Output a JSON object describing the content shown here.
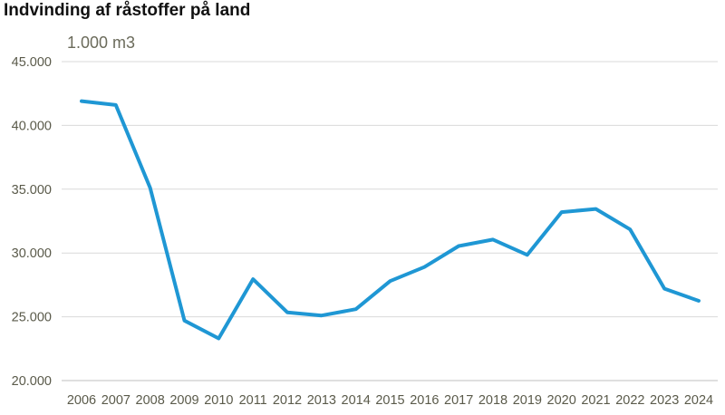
{
  "chart_data": {
    "type": "line",
    "title": "Indvinding af råstoffer på land",
    "unit_label": "1.000 m3",
    "ylim": [
      20000,
      45000
    ],
    "y_ticks": [
      20000,
      25000,
      30000,
      35000,
      40000,
      45000
    ],
    "y_tick_labels": [
      "20.000",
      "25.000",
      "30.000",
      "35.000",
      "40.000",
      "45.000"
    ],
    "grid": true,
    "legend": "none",
    "categories": [
      "2006",
      "2007",
      "2008",
      "2009",
      "2010",
      "2011",
      "2012",
      "2013",
      "2014",
      "2015",
      "2016",
      "2017",
      "2018",
      "2019",
      "2020",
      "2021",
      "2022",
      "2023",
      "2024"
    ],
    "series": [
      {
        "color": "#1f97d4",
        "values": [
          41900,
          41600,
          35100,
          24700,
          23300,
          27950,
          25350,
          25100,
          25600,
          27800,
          28900,
          30550,
          31050,
          29850,
          33200,
          33450,
          31850,
          27200,
          26250
        ]
      }
    ]
  }
}
